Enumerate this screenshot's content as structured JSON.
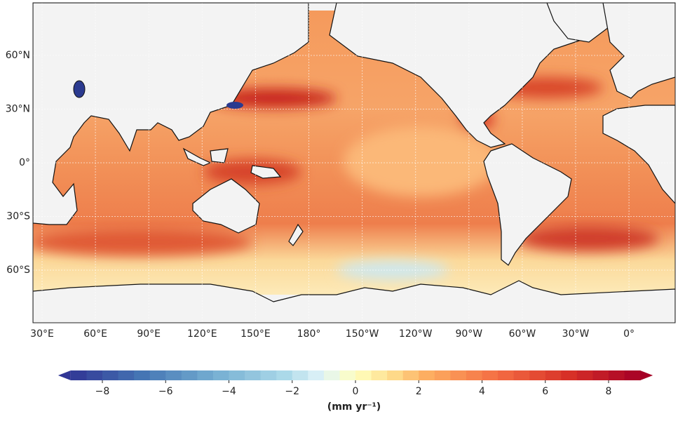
{
  "map": {
    "longitude_ticks": [
      {
        "value": 30,
        "label": "30°E"
      },
      {
        "value": 60,
        "label": "60°E"
      },
      {
        "value": 90,
        "label": "90°E"
      },
      {
        "value": 120,
        "label": "120°E"
      },
      {
        "value": 150,
        "label": "150°E"
      },
      {
        "value": 180,
        "label": "180°"
      },
      {
        "value": -150,
        "label": "150°W"
      },
      {
        "value": -120,
        "label": "120°W"
      },
      {
        "value": -90,
        "label": "90°W"
      },
      {
        "value": -60,
        "label": "60°W"
      },
      {
        "value": -30,
        "label": "30°W"
      },
      {
        "value": 0,
        "label": "0°"
      }
    ],
    "latitude_ticks": [
      {
        "value": 60,
        "label": "60°N"
      },
      {
        "value": 30,
        "label": "30°N"
      },
      {
        "value": 0,
        "label": "0°"
      },
      {
        "value": -30,
        "label": "30°S"
      },
      {
        "value": -60,
        "label": "60°S"
      }
    ],
    "colorbar": {
      "ticks": [
        {
          "value": -8,
          "label": "−8"
        },
        {
          "value": -6,
          "label": "−6"
        },
        {
          "value": -4,
          "label": "−4"
        },
        {
          "value": -2,
          "label": "−2"
        },
        0,
        2,
        4,
        6,
        8
      ],
      "label": "(mm yr⁻¹)"
    }
  }
}
